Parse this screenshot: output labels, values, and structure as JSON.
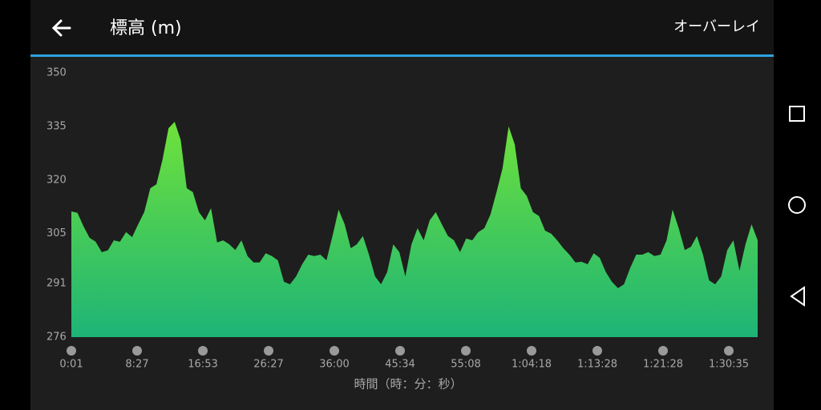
{
  "header": {
    "title": "標高 (m)",
    "action": "オーバーレイ"
  },
  "chart_data": {
    "type": "area",
    "x_label": "時間（時：分：秒）",
    "xticks": [
      "0:01",
      "8:27",
      "16:53",
      "26:27",
      "36:00",
      "45:34",
      "55:08",
      "1:04:18",
      "1:13:28",
      "1:21:28",
      "1:30:35"
    ],
    "ylim": [
      276,
      350
    ],
    "yticks": [
      350,
      335,
      320,
      305,
      291,
      276
    ],
    "colors": [
      "#6fe23a",
      "#1db477"
    ],
    "values": [
      311.2,
      310.8,
      307,
      303.8,
      302.7,
      299.8,
      300.3,
      303.1,
      302.7,
      305.4,
      304,
      307.6,
      311,
      317.7,
      318.8,
      325.6,
      334.5,
      336.3,
      331.2,
      317.7,
      316.6,
      311,
      308.7,
      312.1,
      302.5,
      303.1,
      302,
      300.4,
      303.1,
      298.7,
      296.9,
      296.9,
      299.5,
      298.7,
      297.5,
      291.5,
      290.8,
      293,
      296.4,
      299.1,
      298.7,
      299.1,
      297.5,
      304.3,
      311.7,
      307.6,
      300.9,
      302,
      304.3,
      299.1,
      293,
      290.8,
      294.2,
      302,
      299.8,
      293,
      302,
      306.5,
      303.1,
      308.7,
      311,
      307.6,
      304.3,
      303.1,
      299.8,
      303.6,
      303.1,
      305.4,
      306.5,
      310.3,
      316.6,
      323.3,
      335,
      330,
      317.7,
      315.5,
      311,
      309.9,
      305.8,
      305,
      303.1,
      300.9,
      299.1,
      296.9,
      297.1,
      296.4,
      299.5,
      298.2,
      294.2,
      291.5,
      289.7,
      290.8,
      295.3,
      299.1,
      299.1,
      299.8,
      298.7,
      299.1,
      303.1,
      311.7,
      306.5,
      300.4,
      301.3,
      304.3,
      299.1,
      291.9,
      290.8,
      293,
      300.4,
      303.1,
      294.6,
      302,
      307.6,
      303.1
    ]
  }
}
